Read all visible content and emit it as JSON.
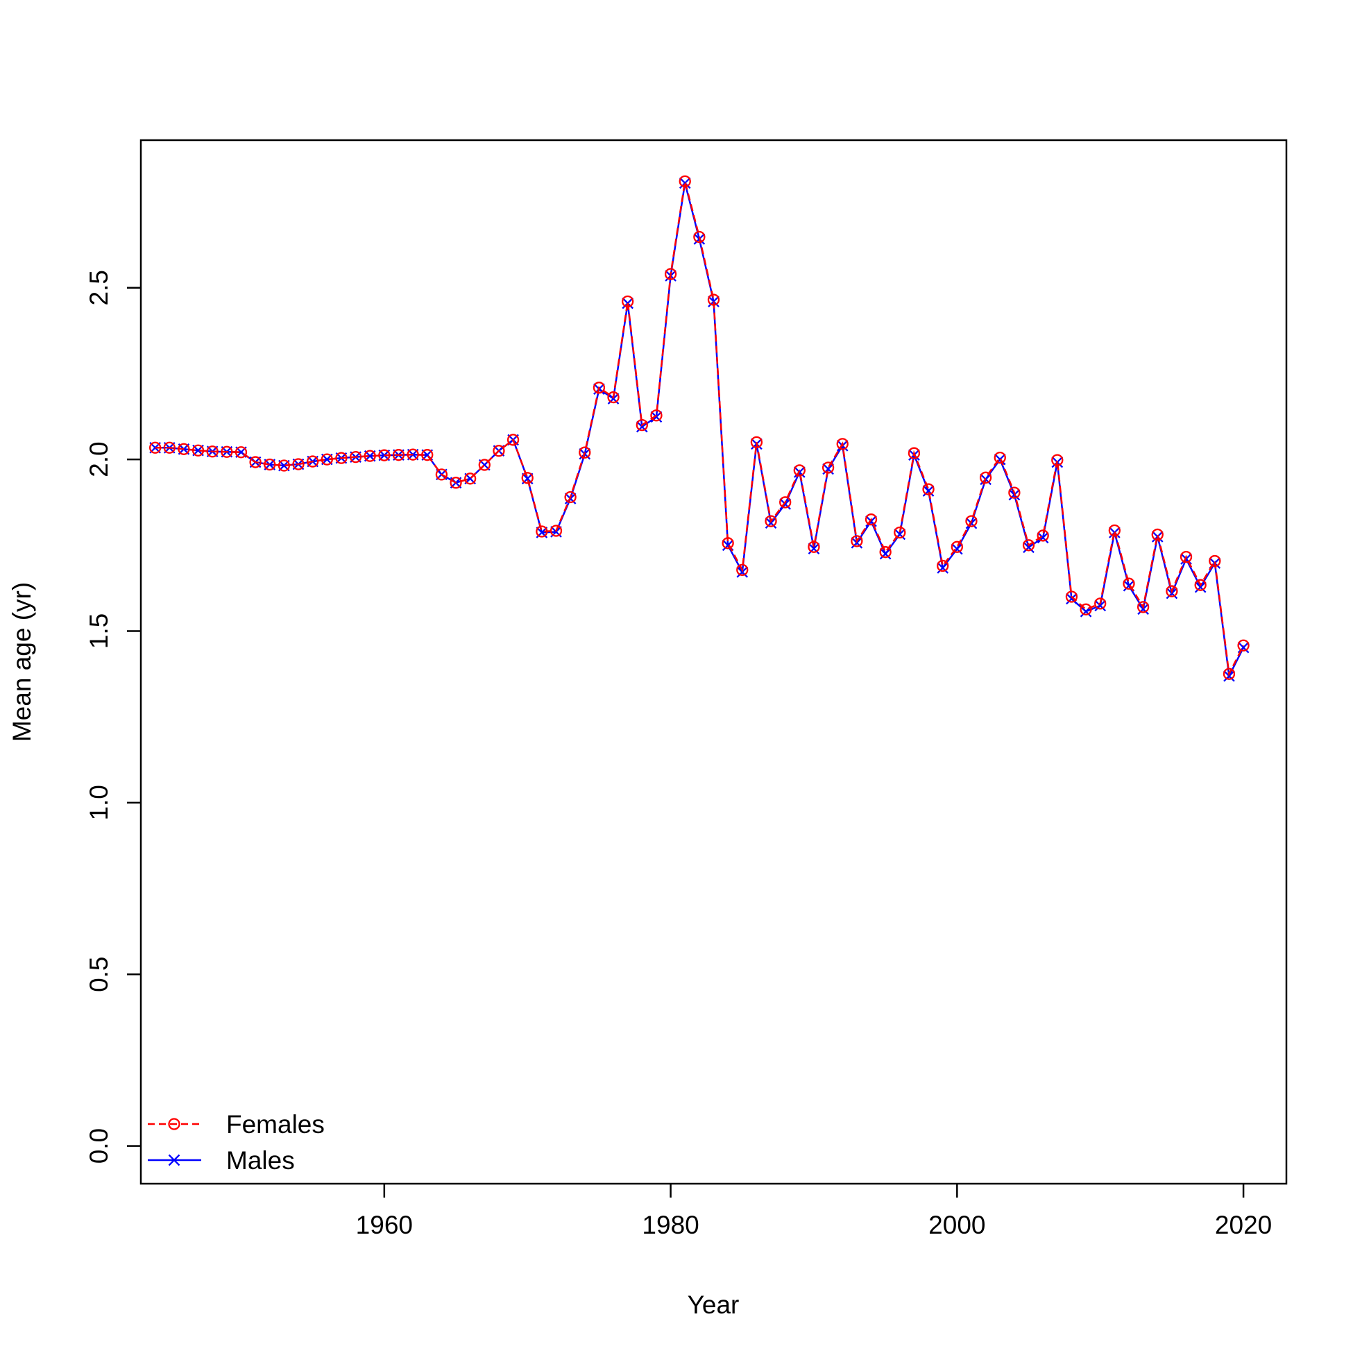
{
  "chart_data": {
    "type": "line",
    "title": "",
    "xlabel": "Year",
    "ylabel": "Mean age (yr)",
    "xlim": [
      1943,
      2023
    ],
    "ylim": [
      -0.11,
      2.93
    ],
    "xticks": [
      1960,
      1980,
      2000,
      2020
    ],
    "yticks": [
      0.0,
      0.5,
      1.0,
      1.5,
      2.0,
      2.5
    ],
    "ytick_labels": [
      "0.0",
      "0.5",
      "1.0",
      "1.5",
      "2.0",
      "2.5"
    ],
    "grid": false,
    "legend_position": "bottom-left",
    "x": [
      1944,
      1945,
      1946,
      1947,
      1948,
      1949,
      1950,
      1951,
      1952,
      1953,
      1954,
      1955,
      1956,
      1957,
      1958,
      1959,
      1960,
      1961,
      1962,
      1963,
      1964,
      1965,
      1966,
      1967,
      1968,
      1969,
      1970,
      1971,
      1972,
      1973,
      1974,
      1975,
      1976,
      1977,
      1978,
      1979,
      1980,
      1981,
      1982,
      1983,
      1984,
      1985,
      1986,
      1987,
      1988,
      1989,
      1990,
      1991,
      1992,
      1993,
      1994,
      1995,
      1996,
      1997,
      1998,
      1999,
      2000,
      2001,
      2002,
      2003,
      2004,
      2005,
      2006,
      2007,
      2008,
      2009,
      2010,
      2011,
      2012,
      2013,
      2014,
      2015,
      2016,
      2017,
      2018,
      2019,
      2020
    ],
    "series": [
      {
        "name": "Females",
        "color": "#ff0000",
        "line_style": "dashed",
        "marker": "circle",
        "values": [
          2.034,
          2.034,
          2.03,
          2.026,
          2.023,
          2.022,
          2.021,
          1.992,
          1.985,
          1.982,
          1.986,
          1.994,
          2.0,
          2.004,
          2.007,
          2.01,
          2.012,
          2.013,
          2.014,
          2.013,
          1.956,
          1.932,
          1.944,
          1.984,
          2.025,
          2.057,
          1.946,
          1.79,
          1.792,
          1.89,
          2.02,
          2.209,
          2.181,
          2.46,
          2.1,
          2.128,
          2.54,
          2.81,
          2.648,
          2.465,
          1.756,
          1.678,
          2.05,
          1.82,
          1.875,
          1.968,
          1.745,
          1.976,
          2.045,
          1.762,
          1.825,
          1.73,
          1.787,
          2.018,
          1.913,
          1.69,
          1.745,
          1.82,
          1.947,
          2.005,
          1.903,
          1.75,
          1.778,
          1.998,
          1.6,
          1.563,
          1.58,
          1.793,
          1.638,
          1.57,
          1.781,
          1.616,
          1.716,
          1.634,
          1.704,
          1.375,
          1.458
        ]
      },
      {
        "name": "Males",
        "color": "#0000ff",
        "line_style": "solid",
        "marker": "x",
        "values": [
          2.034,
          2.034,
          2.03,
          2.026,
          2.023,
          2.022,
          2.021,
          1.992,
          1.985,
          1.982,
          1.986,
          1.994,
          2.0,
          2.004,
          2.007,
          2.01,
          2.012,
          2.013,
          2.014,
          2.013,
          1.956,
          1.932,
          1.944,
          1.984,
          2.025,
          2.057,
          1.944,
          1.787,
          1.789,
          1.886,
          2.016,
          2.205,
          2.177,
          2.455,
          2.095,
          2.124,
          2.535,
          2.805,
          2.642,
          2.46,
          1.75,
          1.672,
          2.045,
          1.815,
          1.87,
          1.963,
          1.74,
          1.972,
          2.04,
          1.757,
          1.82,
          1.725,
          1.782,
          2.013,
          1.908,
          1.684,
          1.739,
          1.814,
          1.942,
          2.0,
          1.897,
          1.744,
          1.772,
          1.992,
          1.594,
          1.557,
          1.574,
          1.787,
          1.632,
          1.564,
          1.775,
          1.61,
          1.71,
          1.628,
          1.698,
          1.369,
          1.452
        ]
      }
    ]
  }
}
